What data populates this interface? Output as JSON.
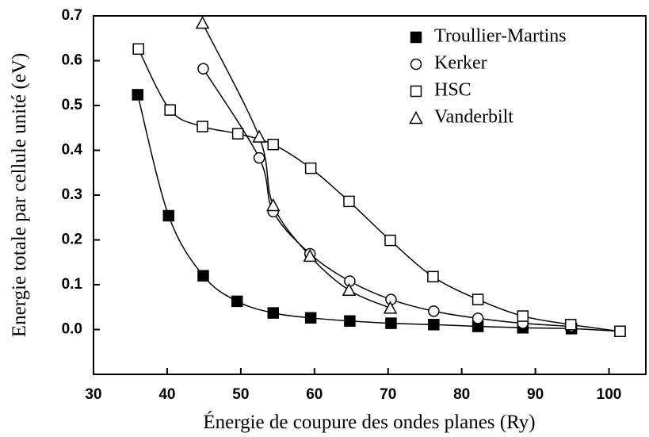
{
  "chart_data": {
    "type": "scatter",
    "xlabel": "Énergie de coupure des ondes planes (Ry)",
    "ylabel": "Energie totale par cellule unité (eV)",
    "xlim": [
      30,
      105
    ],
    "xticks": [
      30,
      40,
      50,
      60,
      70,
      80,
      90,
      100
    ],
    "ylim": [
      -0.1,
      0.7
    ],
    "yticks": [
      {
        "value": 0,
        "label": "0.0"
      },
      0.1,
      0.2,
      0.3,
      0.4,
      0.5,
      0.6,
      0.7
    ],
    "legend": "upper right",
    "grid": false,
    "series": [
      {
        "name": "Troullier-Martins",
        "color": "#000000",
        "marker": "filled-square",
        "x": [
          36,
          40.2,
          44.9,
          49.5,
          54.4,
          59.5,
          64.8,
          70.4,
          76.2,
          82.2,
          88.3,
          94.9,
          101.5
        ],
        "values": [
          0.524,
          0.254,
          0.12,
          0.063,
          0.037,
          0.026,
          0.019,
          0.014,
          0.011,
          0.007,
          0.004,
          0.002,
          -0.004
        ]
      },
      {
        "name": "Kerker",
        "color": "#000000",
        "marker": "circle",
        "x": [
          44.9,
          52.5,
          54.4,
          59.4,
          64.8,
          70.4,
          76.2,
          82.2,
          88.3,
          94.9
        ],
        "values": [
          0.582,
          0.383,
          0.263,
          0.169,
          0.108,
          0.067,
          0.041,
          0.025,
          0.014,
          0.007
        ]
      },
      {
        "name": "HSC",
        "color": "#000000",
        "marker": "square",
        "x": [
          36.1,
          40.4,
          44.8,
          49.6,
          54.4,
          59.5,
          64.7,
          70.3,
          76.1,
          82.2,
          88.3,
          94.8,
          101.5
        ],
        "values": [
          0.626,
          0.49,
          0.453,
          0.437,
          0.413,
          0.36,
          0.286,
          0.199,
          0.118,
          0.067,
          0.03,
          0.011,
          -0.004
        ]
      },
      {
        "name": "Vanderbilt",
        "color": "#000000",
        "marker": "triangle",
        "x": [
          44.8,
          52.5,
          54.4,
          59.4,
          64.7,
          70.3
        ],
        "values": [
          0.684,
          0.43,
          0.277,
          0.164,
          0.088,
          0.048
        ]
      }
    ]
  }
}
